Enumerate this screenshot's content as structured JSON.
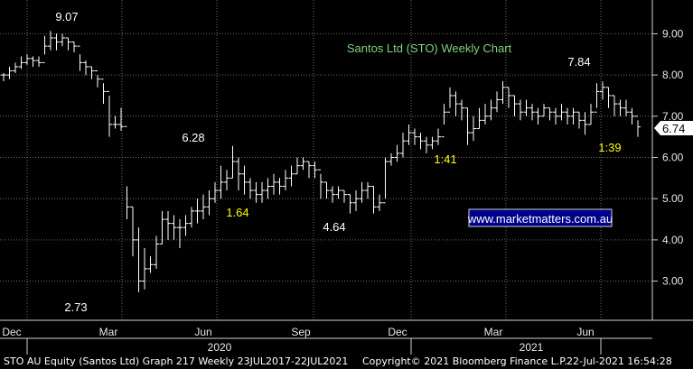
{
  "chart_data": {
    "type": "ohlc",
    "title": "Santos Ltd (STO) Weekly Chart",
    "website": "www.marketmatters.com.au",
    "last_price_label": "6.74",
    "ylim": [
      2.05,
      9.6
    ],
    "y_ticks": [
      "3.00",
      "4.00",
      "5.00",
      "6.00",
      "7.00",
      "8.00",
      "9.00"
    ],
    "month_labels": [
      "Dec",
      "Mar",
      "Jun",
      "Sep",
      "Dec",
      "Mar",
      "Jun"
    ],
    "year_labels": [
      "2020",
      "2021"
    ],
    "annotations": [
      "9.07",
      "2.73",
      "6.28",
      "1.64",
      "4.64",
      "1:41",
      "7.84",
      "1:39"
    ],
    "colors": {
      "bars": "#ffffff",
      "grid": "#6e6e6e",
      "axis": "#cfcfcf",
      "title": "#7fd37f",
      "highlight": "#ffff00",
      "last_price_bg": "#ffffff"
    },
    "weekly_bars": [
      [
        8.0,
        7.85,
        8.05
      ],
      [
        8.1,
        7.9,
        8.2
      ],
      [
        8.2,
        8.05,
        8.3
      ],
      [
        8.3,
        8.15,
        8.45
      ],
      [
        8.4,
        8.25,
        8.5
      ],
      [
        8.35,
        8.2,
        8.45
      ],
      [
        8.3,
        8.2,
        8.45
      ],
      [
        8.7,
        8.5,
        8.95
      ],
      [
        8.9,
        8.6,
        9.07
      ],
      [
        8.8,
        8.6,
        9.0
      ],
      [
        8.9,
        8.7,
        9.0
      ],
      [
        8.8,
        8.6,
        8.9
      ],
      [
        8.7,
        8.55,
        8.8
      ],
      [
        8.3,
        8.1,
        8.5
      ],
      [
        8.2,
        8.0,
        8.35
      ],
      [
        8.1,
        7.9,
        8.2
      ],
      [
        7.9,
        7.7,
        8.0
      ],
      [
        7.6,
        7.3,
        7.8
      ],
      [
        6.8,
        6.5,
        7.5
      ],
      [
        6.8,
        6.7,
        7.0
      ],
      [
        6.75,
        6.65,
        7.2
      ],
      [
        4.8,
        4.5,
        5.3
      ],
      [
        4.0,
        3.6,
        4.8
      ],
      [
        3.0,
        2.73,
        4.3
      ],
      [
        3.3,
        2.8,
        3.8
      ],
      [
        3.4,
        3.2,
        3.6
      ],
      [
        3.9,
        3.3,
        4.1
      ],
      [
        4.5,
        3.9,
        4.7
      ],
      [
        4.4,
        4.0,
        4.7
      ],
      [
        4.3,
        4.0,
        4.6
      ],
      [
        4.3,
        3.8,
        4.5
      ],
      [
        4.4,
        4.1,
        4.6
      ],
      [
        4.7,
        4.3,
        4.8
      ],
      [
        4.7,
        4.4,
        5.0
      ],
      [
        4.8,
        4.5,
        5.1
      ],
      [
        5.0,
        4.6,
        5.2
      ],
      [
        5.2,
        4.9,
        5.4
      ],
      [
        5.4,
        5.0,
        5.8
      ],
      [
        5.5,
        5.2,
        5.7
      ],
      [
        5.9,
        5.5,
        6.28
      ],
      [
        5.6,
        5.2,
        6.0
      ],
      [
        5.4,
        5.1,
        5.8
      ],
      [
        5.2,
        5.0,
        5.5
      ],
      [
        5.1,
        4.9,
        5.4
      ],
      [
        5.2,
        4.9,
        5.4
      ],
      [
        5.3,
        5.0,
        5.5
      ],
      [
        5.4,
        5.1,
        5.6
      ],
      [
        5.3,
        5.1,
        5.5
      ],
      [
        5.5,
        5.2,
        5.7
      ],
      [
        5.6,
        5.3,
        5.8
      ],
      [
        5.8,
        5.6,
        6.0
      ],
      [
        5.9,
        5.7,
        6.0
      ],
      [
        5.8,
        5.5,
        5.9
      ],
      [
        5.7,
        5.5,
        5.9
      ],
      [
        5.4,
        5.0,
        5.6
      ],
      [
        5.2,
        5.0,
        5.4
      ],
      [
        5.1,
        4.9,
        5.3
      ],
      [
        5.2,
        5.0,
        5.3
      ],
      [
        5.1,
        4.9,
        5.2
      ],
      [
        4.9,
        4.64,
        5.1
      ],
      [
        5.0,
        4.7,
        5.2
      ],
      [
        5.2,
        4.9,
        5.4
      ],
      [
        5.3,
        5.0,
        5.4
      ],
      [
        4.8,
        4.64,
        5.3
      ],
      [
        4.9,
        4.7,
        5.1
      ],
      [
        5.9,
        5.0,
        6.0
      ],
      [
        6.0,
        5.8,
        6.1
      ],
      [
        6.1,
        5.9,
        6.3
      ],
      [
        6.4,
        6.0,
        6.6
      ],
      [
        6.6,
        6.3,
        6.8
      ],
      [
        6.5,
        6.3,
        6.7
      ],
      [
        6.4,
        6.2,
        6.6
      ],
      [
        6.3,
        6.1,
        6.5
      ],
      [
        6.4,
        6.2,
        6.5
      ],
      [
        6.5,
        6.3,
        6.7
      ],
      [
        7.1,
        6.8,
        7.3
      ],
      [
        7.5,
        7.2,
        7.7
      ],
      [
        7.3,
        7.0,
        7.6
      ],
      [
        7.2,
        6.9,
        7.4
      ],
      [
        6.6,
        6.3,
        7.2
      ],
      [
        6.7,
        6.4,
        7.0
      ],
      [
        6.9,
        6.7,
        7.2
      ],
      [
        7.0,
        6.8,
        7.3
      ],
      [
        7.2,
        6.9,
        7.4
      ],
      [
        7.4,
        7.1,
        7.6
      ],
      [
        7.7,
        7.3,
        7.85
      ],
      [
        7.5,
        7.2,
        7.7
      ],
      [
        7.3,
        7.0,
        7.5
      ],
      [
        7.1,
        6.9,
        7.4
      ],
      [
        7.2,
        7.0,
        7.4
      ],
      [
        7.1,
        6.9,
        7.3
      ],
      [
        7.0,
        6.8,
        7.2
      ],
      [
        7.2,
        7.0,
        7.3
      ],
      [
        7.1,
        6.9,
        7.2
      ],
      [
        7.0,
        6.8,
        7.2
      ],
      [
        7.1,
        6.9,
        7.3
      ],
      [
        7.0,
        6.8,
        7.2
      ],
      [
        7.1,
        6.8,
        7.2
      ],
      [
        6.9,
        6.7,
        7.1
      ],
      [
        6.8,
        6.55,
        7.1
      ],
      [
        7.1,
        6.8,
        7.3
      ],
      [
        7.6,
        7.2,
        7.8
      ],
      [
        7.7,
        7.4,
        7.84
      ],
      [
        7.5,
        7.2,
        7.7
      ],
      [
        7.3,
        7.0,
        7.5
      ],
      [
        7.2,
        7.0,
        7.4
      ],
      [
        7.1,
        7.0,
        7.4
      ],
      [
        7.0,
        6.8,
        7.2
      ],
      [
        6.74,
        6.5,
        6.9
      ]
    ]
  },
  "footer": {
    "left": "STO AU Equity (Santos Ltd) Graph 217  Weekly 23JUL2017-22JUL2021",
    "center": "Copyright© 2021 Bloomberg Finance L.P.",
    "right": "22-Jul-2021 16:54:28"
  }
}
